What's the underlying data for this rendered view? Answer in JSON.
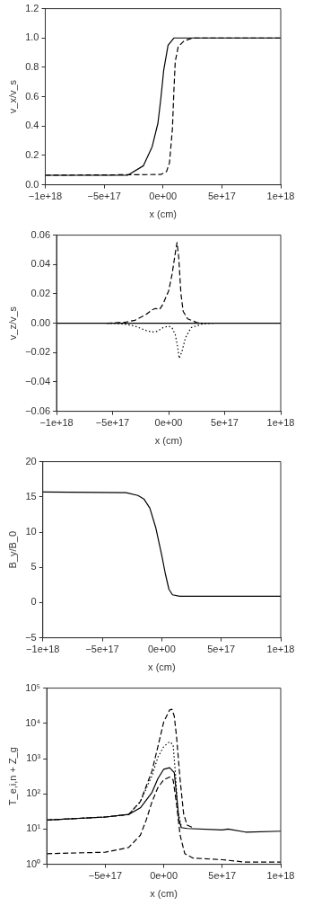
{
  "chart_data": [
    {
      "type": "line",
      "xlabel": "x (cm)",
      "ylabel": "v_x/v_s",
      "xlim": [
        -1e+18,
        1e+18
      ],
      "ylim": [
        0,
        1.2
      ],
      "xticks": [
        {
          "value": -1e+18,
          "label": "−1e+18"
        },
        {
          "value": -5e+17,
          "label": "−5e+17"
        },
        {
          "value": 0,
          "label": "0e+00"
        },
        {
          "value": 5e+17,
          "label": "5e+17"
        },
        {
          "value": 1e+18,
          "label": "1e+18"
        }
      ],
      "yticks": [
        {
          "value": 0,
          "label": "0.0"
        },
        {
          "value": 0.2,
          "label": "0.2"
        },
        {
          "value": 0.4,
          "label": "0.4"
        },
        {
          "value": 0.6,
          "label": "0.6"
        },
        {
          "value": 0.8,
          "label": "0.8"
        },
        {
          "value": 1,
          "label": "1.0"
        },
        {
          "value": 1.2,
          "label": "1.2"
        }
      ],
      "grid": false,
      "legend": false,
      "marker": "none",
      "series": [
        {
          "color": "#000000",
          "line_style": "solid",
          "x": [
            -1e+18,
            -3e+17,
            -1.66e+17,
            -9.2e+16,
            -4.3e+16,
            -1.8e+16,
            6000000000000000.0,
            4.3e+16,
            9.2e+16,
            1e+18
          ],
          "values": [
            0.065,
            0.065,
            0.13,
            0.26,
            0.42,
            0.59,
            0.78,
            0.95,
            1.0,
            1.0
          ]
        },
        {
          "color": "#000000",
          "line_style": "dashed",
          "x": [
            -1e+18,
            -2e+16,
            3e+16,
            5.5e+16,
            8e+16,
            9.2e+16,
            1.04e+17,
            1.29e+17,
            1.78e+17,
            2.5e+17,
            1e+18
          ],
          "values": [
            0.065,
            0.07,
            0.09,
            0.15,
            0.38,
            0.63,
            0.84,
            0.94,
            0.98,
            1.0,
            1.0
          ]
        }
      ]
    },
    {
      "type": "line",
      "xlabel": "x (cm)",
      "ylabel": "v_z/v_s",
      "xlim": [
        -1e+18,
        1e+18
      ],
      "ylim": [
        -0.06,
        0.06
      ],
      "xticks": [
        {
          "value": -1e+18,
          "label": "−1e+18"
        },
        {
          "value": -5e+17,
          "label": "−5e+17"
        },
        {
          "value": 0,
          "label": "0e+00"
        },
        {
          "value": 5e+17,
          "label": "5e+17"
        },
        {
          "value": 1e+18,
          "label": "1e+18"
        }
      ],
      "yticks": [
        {
          "value": -0.06,
          "label": "−0.06"
        },
        {
          "value": -0.04,
          "label": "−0.04"
        },
        {
          "value": -0.02,
          "label": "−0.02"
        },
        {
          "value": 0,
          "label": "0.00"
        },
        {
          "value": 0.02,
          "label": "0.02"
        },
        {
          "value": 0.04,
          "label": "0.04"
        },
        {
          "value": 0.06,
          "label": "0.06"
        }
      ],
      "grid": false,
      "legend": false,
      "marker": "none",
      "series": [
        {
          "color": "#000000",
          "line_style": "solid",
          "x": [
            -1e+18,
            1e+18
          ],
          "values": [
            0,
            0
          ]
        },
        {
          "color": "#000000",
          "line_style": "dashed",
          "x": [
            -5.5e+17,
            -4e+17,
            -3e+17,
            -2e+17,
            -1.5e+17,
            -1.2e+17,
            -8e+16,
            -5e+16,
            0,
            3e+16,
            6e+16,
            7.5e+16,
            9e+16,
            1.1e+17,
            1.3e+17,
            1.7e+17,
            2.5e+17,
            3e+17
          ],
          "values": [
            0,
            0.0005,
            0.002,
            0.006,
            0.009,
            0.01,
            0.0095,
            0.013,
            0.022,
            0.033,
            0.048,
            0.055,
            0.045,
            0.02,
            0.008,
            0.003,
            0.0005,
            0
          ]
        },
        {
          "color": "#000000",
          "line_style": "dotted",
          "x": [
            -5.5e+17,
            -4e+17,
            -3e+17,
            -2e+17,
            -1.5e+17,
            -1e+17,
            -5e+16,
            0,
            3e+16,
            6e+16,
            8e+16,
            9.5e+16,
            1.2e+17,
            1.5e+17,
            2e+17,
            3e+17,
            4e+17
          ],
          "values": [
            0,
            -0.0005,
            -0.002,
            -0.005,
            -0.006,
            -0.0055,
            -0.003,
            -0.002,
            -0.003,
            -0.008,
            -0.016,
            -0.024,
            -0.019,
            -0.01,
            -0.003,
            -0.0005,
            0
          ]
        }
      ]
    },
    {
      "type": "line",
      "xlabel": "x (cm)",
      "ylabel": "B_y/B_0",
      "xlim": [
        -1e+18,
        1e+18
      ],
      "ylim": [
        -5,
        20
      ],
      "xticks": [
        {
          "value": -1e+18,
          "label": "−1e+18"
        },
        {
          "value": -5e+17,
          "label": "−5e+17"
        },
        {
          "value": 0,
          "label": "0e+00"
        },
        {
          "value": 5e+17,
          "label": "5e+17"
        },
        {
          "value": 1e+18,
          "label": "1e+18"
        }
      ],
      "yticks": [
        {
          "value": -5,
          "label": "−5"
        },
        0,
        5,
        10,
        15,
        20
      ],
      "grid": false,
      "legend": false,
      "marker": "none",
      "series": [
        {
          "color": "#000000",
          "line_style": "solid",
          "x": [
            -1e+18,
            -3e+17,
            -2e+17,
            -1.5e+17,
            -1e+17,
            -5e+16,
            0,
            3e+16,
            6e+16,
            9e+16,
            1.5e+17,
            1e+18
          ],
          "values": [
            15.7,
            15.6,
            15.2,
            14.7,
            13.4,
            10.6,
            6.7,
            4.1,
            1.9,
            1.1,
            0.9,
            0.9
          ]
        }
      ]
    },
    {
      "type": "line",
      "log": "y",
      "xlabel": "x (cm)",
      "ylabel": "T_e,i,n + Z_g",
      "xlim": [
        -1e+18,
        1e+18
      ],
      "ylim": [
        1,
        100000
      ],
      "xticks": [
        {
          "value": -1e+18,
          "label": null
        },
        {
          "value": -5e+17,
          "label": "−5e+17"
        },
        {
          "value": 0,
          "label": "0e+00"
        },
        {
          "value": 5e+17,
          "label": "5e+17"
        },
        {
          "value": 1e+18,
          "label": "1e+18"
        }
      ],
      "yticks": [
        {
          "value": 1,
          "label": "10⁰"
        },
        {
          "value": 10,
          "label": "10¹"
        },
        {
          "value": 100,
          "label": "10²"
        },
        {
          "value": 1000,
          "label": "10³"
        },
        {
          "value": 10000,
          "label": "10⁴"
        },
        {
          "value": 100000,
          "label": "10⁵"
        }
      ],
      "grid": false,
      "legend": false,
      "marker": "none",
      "series": [
        {
          "color": "#000000",
          "line_style": "solid",
          "x": [
            -1e+18,
            -5e+17,
            -3e+17,
            -2e+17,
            -1e+17,
            -5e+16,
            0,
            5e+16,
            9e+16,
            1.1e+17,
            1.3e+17,
            1.5e+17,
            2e+17,
            5e+17,
            5.5e+17,
            7e+17,
            1e+18
          ],
          "values": [
            18,
            22,
            26,
            40,
            110,
            270,
            500,
            550,
            400,
            90,
            18,
            11,
            10.4,
            9.4,
            10,
            8.2,
            8.7
          ]
        },
        {
          "color": "#000000",
          "line_style": "dashed",
          "x": [
            -1e+18,
            -5e+17,
            -3e+17,
            -2e+17,
            -1e+17,
            -5e+16,
            0,
            5e+16,
            7e+16,
            9e+16,
            1.1e+17,
            1.4e+17,
            1.7e+17,
            2e+17,
            2.5e+17
          ],
          "values": [
            18,
            22,
            26,
            60,
            450,
            2200,
            11000,
            24000,
            25000,
            16000,
            4000,
            250,
            27,
            13,
            11
          ]
        },
        {
          "color": "#000000",
          "line_style": "dotted",
          "x": [
            -1e+18,
            -5e+17,
            -3e+17,
            -2e+17,
            -1e+17,
            -5e+16,
            0,
            5e+16,
            8e+16,
            1e+17,
            1.2e+17,
            1.5e+17
          ],
          "values": [
            18,
            22,
            26,
            60,
            330,
            1100,
            2200,
            3000,
            2500,
            370,
            33,
            12
          ]
        },
        {
          "color": "#000000",
          "line_style": "dashed",
          "x": [
            -1e+18,
            -5e+17,
            -3e+17,
            -2e+17,
            -1.5e+17,
            -1e+17,
            -5e+16,
            0,
            5e+16,
            8e+16,
            1.1e+17,
            1.4e+17,
            1.8e+17,
            2.5e+17,
            5e+17,
            7e+17,
            1e+18
          ],
          "values": [
            2.0,
            2.2,
            3.0,
            6.7,
            18,
            60,
            150,
            250,
            300,
            250,
            50,
            6.7,
            2.0,
            1.5,
            1.35,
            1.15,
            1.15
          ]
        }
      ]
    }
  ]
}
